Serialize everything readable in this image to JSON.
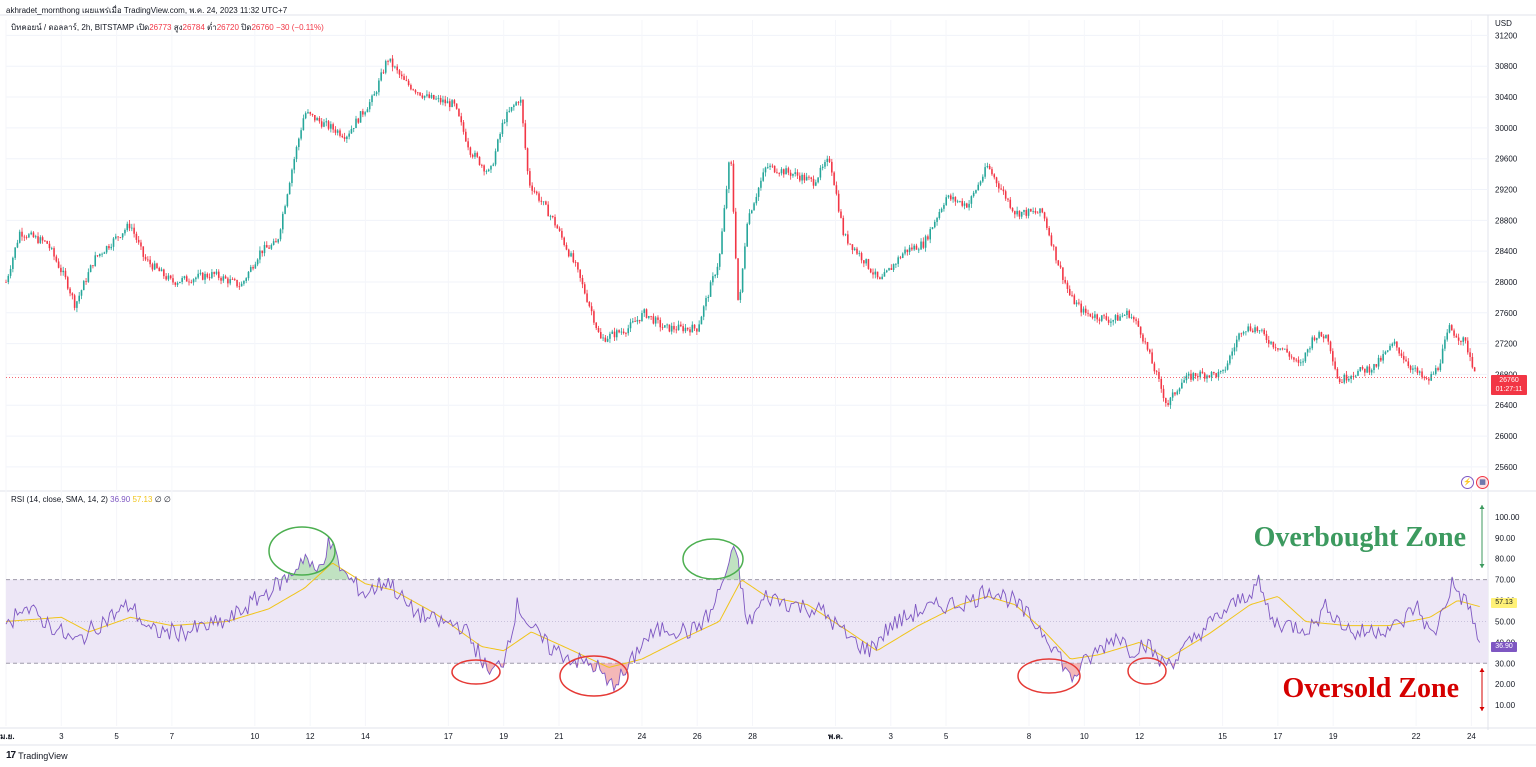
{
  "header": {
    "publish_line": "akhradet_mornthong เผยแพร่เมื่อ TradingView.com, พ.ค. 24, 2023 11:32 UTC+7",
    "symbol_desc": "บิทคอยน์ / ดอลลาร์, 2h, BITSTAMP",
    "open_label": "เปิด",
    "open_value": "26773",
    "high_label": "สูง",
    "high_value": "26784",
    "low_label": "ต่ำ",
    "low_value": "26720",
    "close_label": "ปิด",
    "close_value": "26760",
    "change": "−30 (−0.11%)"
  },
  "price_axis": {
    "currency": "USD",
    "current_price": "26760",
    "countdown": "01:27:11"
  },
  "rsi": {
    "legend": "RSI (14, close, SMA, 14, 2)",
    "rsi_value": "36.90",
    "sma_value": "57.13",
    "extra": "∅ ∅",
    "upper_band": 70,
    "middle_band": 50,
    "lower_band": 30
  },
  "annotations": {
    "overbought": "Overbought Zone",
    "oversold": "Oversold Zone"
  },
  "footer": {
    "brand": "TradingView",
    "logo": "17"
  },
  "colors": {
    "up": "#26a69a",
    "down": "#f23645",
    "rsi_line": "#7e57c2",
    "rsi_sma": "#f0c419",
    "band_fill": "#ede7f6",
    "overbought": "#3c9a5f",
    "oversold": "#d50000"
  },
  "chart_data": [
    {
      "type": "candlestick",
      "title": "บิทคอยน์ / ดอลลาร์, 2h, BITSTAMP",
      "ylabel": "USD",
      "ylim": [
        25300,
        31400
      ],
      "y_ticks": [
        25600,
        26000,
        26400,
        26800,
        27200,
        27600,
        28000,
        28400,
        28800,
        29200,
        29600,
        30000,
        30400,
        30800,
        31200
      ],
      "x_ticks": [
        "เม.ย.",
        "3",
        "5",
        "7",
        "10",
        "12",
        "14",
        "17",
        "19",
        "21",
        "24",
        "26",
        "28",
        "พ.ค.",
        "3",
        "5",
        "8",
        "10",
        "12",
        "15",
        "17",
        "19",
        "22",
        "24"
      ],
      "x_tick_index": [
        0,
        2,
        4,
        6,
        9,
        11,
        13,
        16,
        18,
        20,
        23,
        25,
        27,
        30,
        32,
        34,
        37,
        39,
        41,
        44,
        46,
        48,
        51,
        53
      ],
      "days": 53.6,
      "close_keyframes": [
        [
          0,
          28000
        ],
        [
          0.5,
          28650
        ],
        [
          1.5,
          28500
        ],
        [
          2.2,
          28000
        ],
        [
          2.5,
          27700
        ],
        [
          3.2,
          28300
        ],
        [
          4.5,
          28750
        ],
        [
          5,
          28300
        ],
        [
          6,
          28000
        ],
        [
          7.5,
          28100
        ],
        [
          8.5,
          27950
        ],
        [
          9.2,
          28400
        ],
        [
          9.8,
          28500
        ],
        [
          10.3,
          29400
        ],
        [
          10.8,
          30200
        ],
        [
          11.5,
          30050
        ],
        [
          12.3,
          29900
        ],
        [
          13.3,
          30400
        ],
        [
          13.8,
          30900
        ],
        [
          14.4,
          30600
        ],
        [
          15.2,
          30400
        ],
        [
          16.2,
          30300
        ],
        [
          16.8,
          29700
        ],
        [
          17.5,
          29400
        ],
        [
          18,
          30100
        ],
        [
          18.6,
          30400
        ],
        [
          18.9,
          29300
        ],
        [
          19.8,
          28800
        ],
        [
          20.6,
          28200
        ],
        [
          21.2,
          27600
        ],
        [
          21.5,
          27250
        ],
        [
          22.5,
          27400
        ],
        [
          23.1,
          27600
        ],
        [
          23.8,
          27400
        ],
        [
          24.3,
          27400
        ],
        [
          25,
          27400
        ],
        [
          25.8,
          28300
        ],
        [
          26.2,
          29700
        ],
        [
          26.5,
          27600
        ],
        [
          26.8,
          28800
        ],
        [
          27.5,
          29500
        ],
        [
          28.5,
          29400
        ],
        [
          29.2,
          29300
        ],
        [
          29.8,
          29600
        ],
        [
          30.3,
          28600
        ],
        [
          31,
          28300
        ],
        [
          31.6,
          28000
        ],
        [
          32.5,
          28400
        ],
        [
          33.2,
          28500
        ],
        [
          34,
          29100
        ],
        [
          34.8,
          29000
        ],
        [
          35.5,
          29500
        ],
        [
          36,
          29200
        ],
        [
          36.5,
          28900
        ],
        [
          37.5,
          28900
        ],
        [
          38,
          28300
        ],
        [
          38.5,
          27800
        ],
        [
          39,
          27600
        ],
        [
          40,
          27500
        ],
        [
          40.6,
          27600
        ],
        [
          41,
          27400
        ],
        [
          41.6,
          26800
        ],
        [
          42,
          26400
        ],
        [
          42.5,
          26700
        ],
        [
          43,
          26800
        ],
        [
          44,
          26800
        ],
        [
          44.7,
          27400
        ],
        [
          45.2,
          27400
        ],
        [
          45.8,
          27200
        ],
        [
          46.3,
          27100
        ],
        [
          46.8,
          26900
        ],
        [
          47.3,
          27300
        ],
        [
          47.8,
          27300
        ],
        [
          48.2,
          26700
        ],
        [
          48.6,
          26800
        ],
        [
          49.5,
          26900
        ],
        [
          50.2,
          27200
        ],
        [
          50.8,
          26900
        ],
        [
          51.4,
          26700
        ],
        [
          51.8,
          26900
        ],
        [
          52.2,
          27400
        ],
        [
          52.8,
          27200
        ],
        [
          53.2,
          26760
        ]
      ]
    },
    {
      "type": "line",
      "title": "RSI (14, close, SMA, 14, 2)",
      "ylim": [
        0,
        110
      ],
      "y_ticks": [
        10,
        20,
        30,
        40,
        50,
        60,
        70,
        80,
        90,
        100
      ],
      "bands": [
        30,
        50,
        70
      ],
      "rsi_keyframes": [
        [
          0,
          45
        ],
        [
          0.5,
          58
        ],
        [
          1.2,
          52
        ],
        [
          2.5,
          40
        ],
        [
          3.5,
          50
        ],
        [
          4.5,
          58
        ],
        [
          5.2,
          45
        ],
        [
          6.5,
          45
        ],
        [
          8,
          50
        ],
        [
          9,
          60
        ],
        [
          10.3,
          72
        ],
        [
          10.8,
          82
        ],
        [
          11.2,
          72
        ],
        [
          11.7,
          88
        ],
        [
          12.2,
          73
        ],
        [
          13,
          63
        ],
        [
          13.8,
          70
        ],
        [
          14.6,
          56
        ],
        [
          15.5,
          50
        ],
        [
          16.5,
          48
        ],
        [
          17.1,
          35
        ],
        [
          17.5,
          24
        ],
        [
          18,
          32
        ],
        [
          18.5,
          58
        ],
        [
          19,
          47
        ],
        [
          19.6,
          38
        ],
        [
          20.5,
          32
        ],
        [
          21.4,
          28
        ],
        [
          21.8,
          19
        ],
        [
          22.4,
          25
        ],
        [
          23,
          40
        ],
        [
          23.8,
          47
        ],
        [
          24.8,
          45
        ],
        [
          25.5,
          54
        ],
        [
          26,
          72
        ],
        [
          26.4,
          85
        ],
        [
          26.8,
          48
        ],
        [
          27.5,
          62
        ],
        [
          28.5,
          58
        ],
        [
          29.5,
          55
        ],
        [
          30.5,
          42
        ],
        [
          31.2,
          36
        ],
        [
          32,
          48
        ],
        [
          33,
          55
        ],
        [
          34,
          58
        ],
        [
          35,
          60
        ],
        [
          35.5,
          66
        ],
        [
          36.4,
          60
        ],
        [
          37,
          52
        ],
        [
          37.6,
          44
        ],
        [
          38.1,
          34
        ],
        [
          38.5,
          22
        ],
        [
          39,
          30
        ],
        [
          39.5,
          36
        ],
        [
          40.2,
          44
        ],
        [
          40.7,
          36
        ],
        [
          41.2,
          40
        ],
        [
          41.8,
          30
        ],
        [
          42.3,
          32
        ],
        [
          43.2,
          45
        ],
        [
          44.1,
          55
        ],
        [
          44.8,
          62
        ],
        [
          45.3,
          68
        ],
        [
          45.8,
          50
        ],
        [
          46.5,
          48
        ],
        [
          47.2,
          47
        ],
        [
          47.8,
          58
        ],
        [
          48.2,
          50
        ],
        [
          48.8,
          44
        ],
        [
          49.5,
          46
        ],
        [
          50.4,
          48
        ],
        [
          51,
          58
        ],
        [
          51.6,
          42
        ],
        [
          52.3,
          68
        ],
        [
          53,
          55
        ],
        [
          53.3,
          37
        ]
      ],
      "sma_keyframes": [
        [
          0,
          50
        ],
        [
          2,
          52
        ],
        [
          3,
          45
        ],
        [
          4.5,
          52
        ],
        [
          6,
          48
        ],
        [
          8,
          50
        ],
        [
          9.5,
          56
        ],
        [
          10.8,
          66
        ],
        [
          11.8,
          78
        ],
        [
          13,
          68
        ],
        [
          14,
          65
        ],
        [
          15.5,
          54
        ],
        [
          17.2,
          38
        ],
        [
          18,
          36
        ],
        [
          19,
          45
        ],
        [
          20.5,
          36
        ],
        [
          21.8,
          28
        ],
        [
          23,
          32
        ],
        [
          24.5,
          42
        ],
        [
          25.8,
          50
        ],
        [
          26.6,
          70
        ],
        [
          27.5,
          62
        ],
        [
          29,
          58
        ],
        [
          30.5,
          45
        ],
        [
          31.5,
          36
        ],
        [
          33,
          48
        ],
        [
          34.5,
          58
        ],
        [
          35.5,
          62
        ],
        [
          36.5,
          58
        ],
        [
          37.5,
          46
        ],
        [
          38.5,
          32
        ],
        [
          39.5,
          34
        ],
        [
          41,
          40
        ],
        [
          42,
          32
        ],
        [
          43.5,
          44
        ],
        [
          45,
          58
        ],
        [
          46,
          62
        ],
        [
          47,
          50
        ],
        [
          48.5,
          48
        ],
        [
          50,
          48
        ],
        [
          51.5,
          52
        ],
        [
          52.5,
          60
        ],
        [
          53.3,
          57.13
        ]
      ]
    }
  ]
}
